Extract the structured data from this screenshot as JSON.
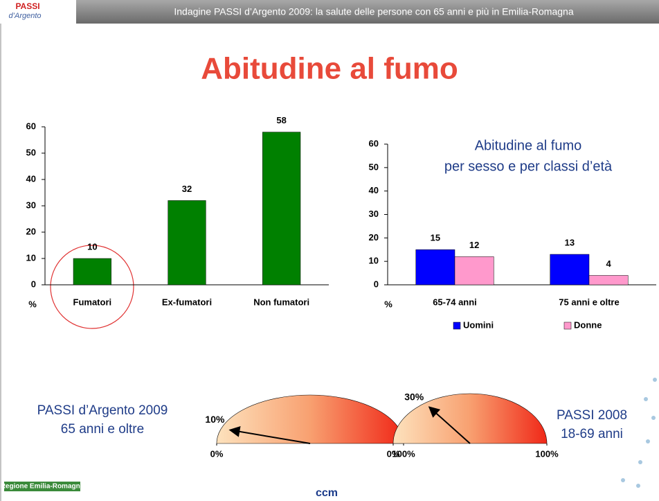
{
  "header": {
    "text": "Indagine PASSI d’Argento 2009: la salute delle persone con 65 anni e più in Emilia-Romagna",
    "logo": [
      "PASSI",
      "d’Argento"
    ]
  },
  "title": "Abitudine al fumo",
  "footer": {
    "logos": [
      "Regione Emilia-Romagna",
      "ccm"
    ]
  },
  "chart_data": [
    {
      "type": "bar",
      "categories": [
        "Fumatori",
        "Ex-fumatori",
        "Non fumatori"
      ],
      "values": [
        10,
        32,
        58
      ],
      "color": "#008000",
      "ylim": [
        0,
        60
      ],
      "yticks": [
        0,
        10,
        20,
        30,
        40,
        50,
        60
      ],
      "y_label": "%"
    },
    {
      "type": "grouped_bar",
      "title": [
        "Abitudine al fumo",
        "per sesso e per classi d’età"
      ],
      "categories": [
        "65-74 anni",
        "75 anni e oltre"
      ],
      "series": [
        {
          "name": "Uomini",
          "color": "#0000ff",
          "values": [
            15,
            13
          ]
        },
        {
          "name": "Donne",
          "color": "#ff99cc",
          "values": [
            12,
            4
          ]
        }
      ],
      "ylim": [
        0,
        60
      ],
      "yticks": [
        0,
        10,
        20,
        30,
        40,
        50,
        60
      ],
      "y_label": "%",
      "legend": "bottom"
    },
    {
      "type": "gauge",
      "label": [
        "PASSI d’Argento 2009",
        "65 anni e oltre"
      ],
      "values": [
        10
      ],
      "value_labels": [
        "10%"
      ],
      "xlim": [
        0,
        100
      ],
      "xticks": [
        {
          "value": 0,
          "label": "0%"
        },
        {
          "value": 100,
          "label": "100%"
        }
      ]
    },
    {
      "type": "gauge",
      "label": [
        "PASSI 2008",
        "18-69 anni"
      ],
      "values": [
        30
      ],
      "value_labels": [
        "30%"
      ],
      "xlim": [
        0,
        100
      ],
      "xticks": [
        {
          "value": 0,
          "label": "0%"
        },
        {
          "value": 100,
          "label": "100%"
        }
      ]
    }
  ]
}
